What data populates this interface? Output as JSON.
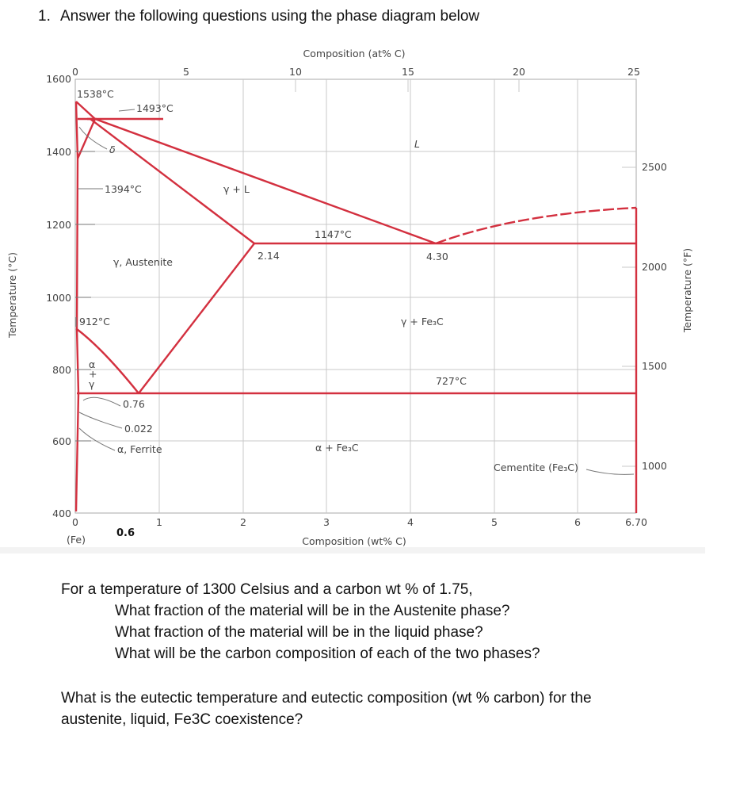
{
  "question": {
    "number": "1.",
    "text": "Answer the following questions using the phase diagram below"
  },
  "diagram": {
    "top_axis_title": "Composition (at% C)",
    "top_ticks": [
      "0",
      "5",
      "10",
      "15",
      "20",
      "25"
    ],
    "left_axis_title": "Temperature (°C)",
    "left_ticks": [
      "1600",
      "1400",
      "1200",
      "1000",
      "800",
      "600",
      "400"
    ],
    "right_axis_title": "Temperature (°F)",
    "right_ticks": [
      "2500",
      "2000",
      "1500",
      "1000"
    ],
    "bottom_axis_title": "Composition (wt% C)",
    "bottom_ticks": [
      "0",
      "1",
      "2",
      "3",
      "4",
      "5",
      "6",
      "6.70"
    ],
    "fe_label": "(Fe)",
    "labels": [
      "1538°C",
      "1493°C",
      "δ",
      "1394°C",
      "γ + L",
      "L",
      "1147°C",
      "2.14",
      "4.30",
      "γ, Austenite",
      "912°C",
      "γ + Fe₃C",
      "α",
      "+",
      "γ",
      "727°C",
      "0.76",
      "0.022",
      "α, Ferrite",
      "α + Fe₃C",
      "Cementite (Fe₃C)"
    ],
    "annotation": "0.6"
  },
  "body": {
    "paragraph_1": [
      "For a temperature of 1300 Celsius and a carbon wt % of 1.75,",
      "What fraction of the material will be in the Austenite phase?",
      "What fraction of the material will be in the liquid phase?",
      "What will be the carbon composition of each of the two phases?"
    ],
    "paragraph_2": [
      "What is the eutectic temperature and eutectic composition (wt % carbon) for the",
      "austenite, liquid, Fe3C coexistence?"
    ]
  }
}
